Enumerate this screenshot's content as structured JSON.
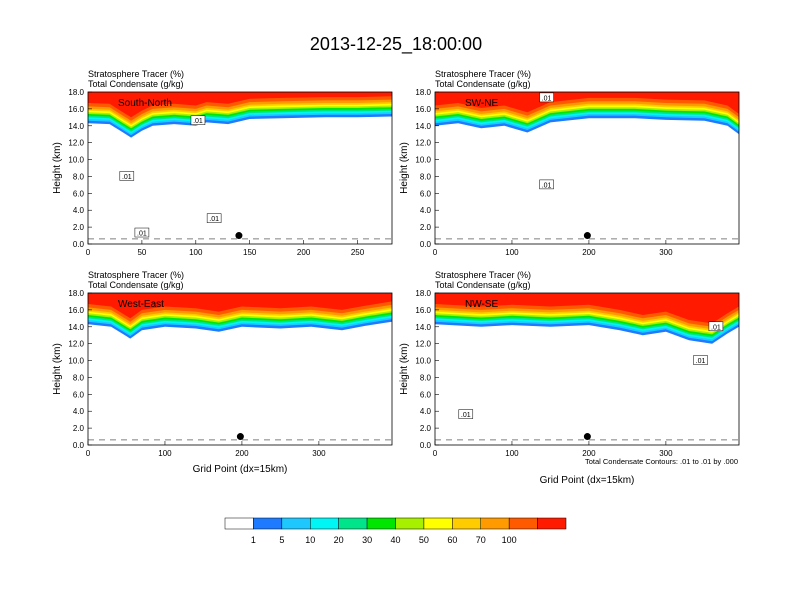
{
  "figure_title": "2013-12-25_18:00:00",
  "colors": {
    "levels": [
      "#ffffff",
      "#1e7bff",
      "#1ec8ff",
      "#00f5f5",
      "#00e58a",
      "#00e600",
      "#a6f000",
      "#ffff00",
      "#ffcc00",
      "#ff9a00",
      "#ff5a00",
      "#ff1a00"
    ],
    "contour": "#000000"
  },
  "colorbar": {
    "labels": [
      "1",
      "5",
      "10",
      "20",
      "30",
      "40",
      "50",
      "60",
      "70",
      "100"
    ]
  },
  "contour_note": "Total Condensate Contours: .01 to .01 by .000",
  "chart_data": [
    {
      "type": "heatmap",
      "label": "South-North",
      "title_line1": "Stratosphere Tracer   (%)",
      "title_line2": "Total Condensate   (g/kg)",
      "ylabel": "Height (km)",
      "xlabel": "",
      "xlim": [
        0,
        282
      ],
      "ylim": [
        0,
        18
      ],
      "xticks": [
        0,
        50,
        100,
        150,
        200,
        250
      ],
      "yticks": [
        "0.0",
        "2.0",
        "4.0",
        "6.0",
        "8.0",
        "10.0",
        "12.0",
        "14.0",
        "16.0",
        "18.0"
      ],
      "tracer_base_km": [
        [
          0,
          14.9
        ],
        [
          20,
          14.8
        ],
        [
          30,
          14.0
        ],
        [
          40,
          13.2
        ],
        [
          50,
          14.0
        ],
        [
          60,
          14.6
        ],
        [
          80,
          14.8
        ],
        [
          100,
          14.6
        ],
        [
          110,
          15.0
        ],
        [
          130,
          14.8
        ],
        [
          150,
          15.4
        ],
        [
          180,
          15.5
        ],
        [
          220,
          15.6
        ],
        [
          250,
          15.6
        ],
        [
          282,
          15.7
        ]
      ],
      "contour_labels": [
        {
          "x": 102,
          "y": 14.6,
          "text": ".01"
        },
        {
          "x": 36,
          "y": 8.0,
          "text": ".01"
        },
        {
          "x": 117,
          "y": 3.0,
          "text": ".01"
        },
        {
          "x": 50,
          "y": 1.3,
          "text": ".01"
        }
      ],
      "marker": {
        "x": 140,
        "y": 1.0
      }
    },
    {
      "type": "heatmap",
      "label": "SW-NE",
      "title_line1": "Stratosphere Tracer   (%)",
      "title_line2": "Total Condensate   (g/kg)",
      "ylabel": "Height (km)",
      "xlabel": "",
      "xlim": [
        0,
        395
      ],
      "ylim": [
        0,
        18
      ],
      "xticks": [
        0,
        100,
        200,
        300
      ],
      "yticks": [
        "0.0",
        "2.0",
        "4.0",
        "6.0",
        "8.0",
        "10.0",
        "12.0",
        "14.0",
        "16.0",
        "18.0"
      ],
      "tracer_base_km": [
        [
          0,
          14.6
        ],
        [
          30,
          14.9
        ],
        [
          60,
          14.3
        ],
        [
          90,
          14.6
        ],
        [
          120,
          13.8
        ],
        [
          150,
          15.0
        ],
        [
          200,
          15.5
        ],
        [
          260,
          15.5
        ],
        [
          300,
          15.3
        ],
        [
          350,
          15.2
        ],
        [
          380,
          14.6
        ],
        [
          395,
          13.6
        ]
      ],
      "contour_labels": [
        {
          "x": 145,
          "y": 17.3,
          "text": ".01"
        },
        {
          "x": 145,
          "y": 7.0,
          "text": ".01"
        }
      ],
      "marker": {
        "x": 198,
        "y": 1.0
      }
    },
    {
      "type": "heatmap",
      "label": "West-East",
      "title_line1": "Stratosphere Tracer   (%)",
      "title_line2": "Total Condensate   (g/kg)",
      "ylabel": "Height (km)",
      "xlabel": "Grid Point (dx=15km)",
      "xlim": [
        0,
        395
      ],
      "ylim": [
        0,
        18
      ],
      "xticks": [
        0,
        100,
        200,
        300
      ],
      "yticks": [
        "0.0",
        "2.0",
        "4.0",
        "6.0",
        "8.0",
        "10.0",
        "12.0",
        "14.0",
        "16.0",
        "18.0"
      ],
      "tracer_base_km": [
        [
          0,
          14.9
        ],
        [
          30,
          14.6
        ],
        [
          55,
          13.2
        ],
        [
          70,
          14.2
        ],
        [
          100,
          14.6
        ],
        [
          140,
          14.4
        ],
        [
          170,
          14.0
        ],
        [
          200,
          14.6
        ],
        [
          250,
          14.4
        ],
        [
          290,
          14.6
        ],
        [
          330,
          14.2
        ],
        [
          360,
          14.7
        ],
        [
          395,
          15.2
        ]
      ],
      "contour_labels": [],
      "marker": {
        "x": 198,
        "y": 1.0
      }
    },
    {
      "type": "heatmap",
      "label": "NW-SE",
      "title_line1": "Stratosphere Tracer   (%)",
      "title_line2": "Total Condensate   (g/kg)",
      "ylabel": "Height (km)",
      "xlabel": "Grid Point (dx=15km)",
      "xlim": [
        0,
        395
      ],
      "ylim": [
        0,
        18
      ],
      "xticks": [
        0,
        100,
        200,
        300
      ],
      "yticks": [
        "0.0",
        "2.0",
        "4.0",
        "6.0",
        "8.0",
        "10.0",
        "12.0",
        "14.0",
        "16.0",
        "18.0"
      ],
      "tracer_base_km": [
        [
          0,
          14.9
        ],
        [
          60,
          14.6
        ],
        [
          100,
          14.8
        ],
        [
          150,
          14.6
        ],
        [
          200,
          14.8
        ],
        [
          240,
          14.2
        ],
        [
          270,
          13.6
        ],
        [
          300,
          14.0
        ],
        [
          330,
          13.0
        ],
        [
          360,
          12.6
        ],
        [
          380,
          13.8
        ],
        [
          395,
          14.6
        ]
      ],
      "contour_labels": [
        {
          "x": 365,
          "y": 14.0,
          "text": ".01"
        },
        {
          "x": 345,
          "y": 10.0,
          "text": ".01"
        },
        {
          "x": 40,
          "y": 3.6,
          "text": ".01"
        }
      ],
      "marker": {
        "x": 198,
        "y": 1.0
      }
    }
  ]
}
